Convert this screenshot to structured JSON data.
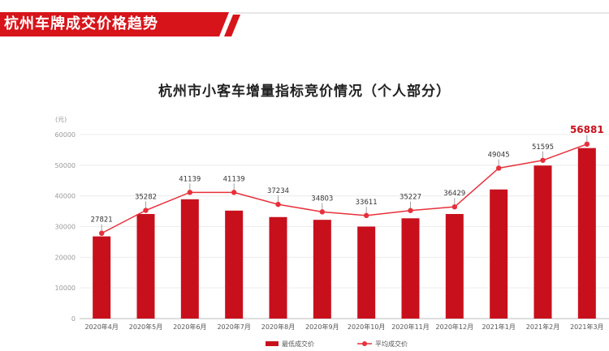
{
  "banner": {
    "title": "杭州车牌成交价格趋势"
  },
  "colors": {
    "accent": "#d7141a",
    "bar": "#c8101d",
    "line": "#e8303a"
  },
  "chart_data": {
    "type": "bar",
    "title": "杭州市小客车增量指标竞价情况（个人部分）",
    "ylabel": "(元)",
    "ylim": [
      0,
      60000
    ],
    "yticks": [
      0,
      10000,
      20000,
      30000,
      40000,
      50000,
      60000
    ],
    "grid": true,
    "legend_position": "bottom",
    "categories": [
      "2020年4月",
      "2020年5月",
      "2020年6月",
      "2020年7月",
      "2020年8月",
      "2020年9月",
      "2020年10月",
      "2020年11月",
      "2020年12月",
      "2021年1月",
      "2021年2月",
      "2021年3月"
    ],
    "series": [
      {
        "name": "最低成交价",
        "kind": "bar",
        "values": [
          26800,
          34100,
          38900,
          35200,
          33100,
          32200,
          30000,
          32700,
          34100,
          42100,
          49900,
          55600
        ]
      },
      {
        "name": "平均成交价",
        "kind": "line",
        "values": [
          27821,
          35282,
          41139,
          41139,
          37234,
          34803,
          33611,
          35227,
          36429,
          49045,
          51595,
          56881
        ]
      }
    ]
  }
}
